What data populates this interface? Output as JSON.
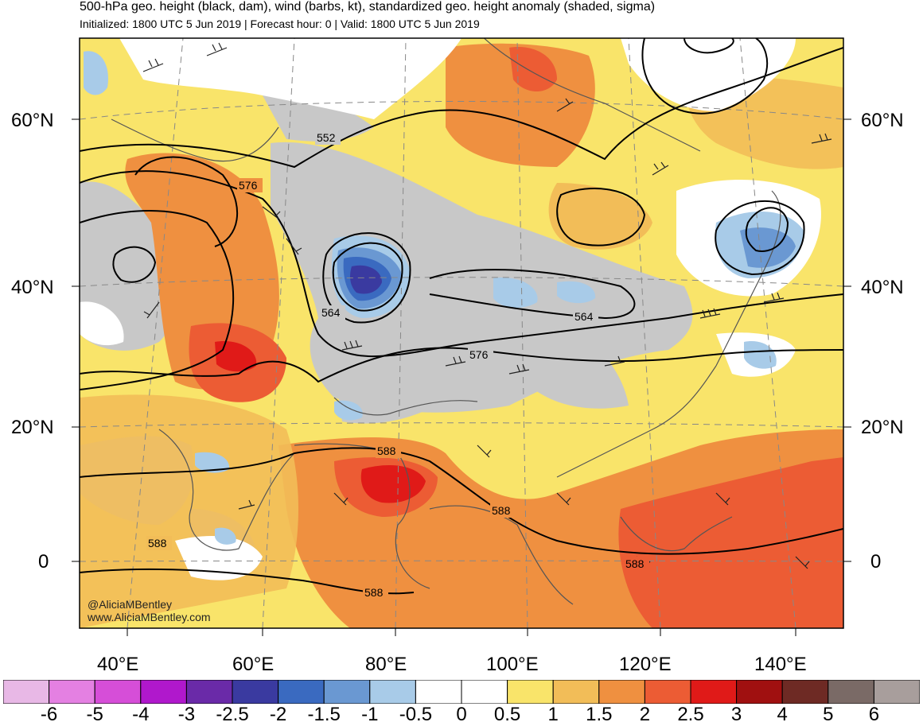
{
  "header": {
    "title": "500-hPa geo. height (black, dam), wind (barbs, kt), standardized geo. height anomaly (shaded, sigma)",
    "subtitle": "Initialized: 1800 UTC 5 Jun 2019 | Forecast hour: 0 | Valid: 1800 UTC 5 Jun 2019"
  },
  "map": {
    "lat_labels": [
      "60°N",
      "40°N",
      "20°N",
      "0"
    ],
    "lon_labels": [
      "40°E",
      "60°E",
      "80°E",
      "100°E",
      "120°E",
      "140°E"
    ],
    "contour_labels": [
      "552",
      "576",
      "564",
      "564",
      "576",
      "588",
      "588",
      "588",
      "588",
      "588"
    ],
    "credit": [
      "@AliciaMBentley",
      "www.AliciaMBentley.com"
    ]
  },
  "colorbar": {
    "labels": [
      "-6",
      "-5",
      "-4",
      "-3",
      "-2.5",
      "-2",
      "-1.5",
      "-1",
      "-0.5",
      "0",
      "0.5",
      "1",
      "1.5",
      "2",
      "2.5",
      "3",
      "4",
      "5",
      "6"
    ],
    "colors": [
      "#e8b8e6",
      "#e480e2",
      "#d64ed8",
      "#b018cc",
      "#6a2aa8",
      "#3a3aa0",
      "#3a6ac0",
      "#6a98d2",
      "#a8cbe8",
      "#ffffff",
      "#ffffff",
      "#f9e46a",
      "#f2bd58",
      "#ef9040",
      "#ec5c34",
      "#e01a18",
      "#a01010",
      "#6e2a24",
      "#7a6a66",
      "#a89e9c"
    ]
  },
  "anomaly_colors": {
    "grey": "#c8c8c8",
    "yellow": "#f9e46a",
    "light_orange": "#f2bd58",
    "orange": "#ef9040",
    "red_orange": "#ec5c34",
    "red": "#e01a18",
    "light_blue": "#a8cbe8",
    "mid_blue": "#6a98d2",
    "blue": "#3a6ac0",
    "dark_blue": "#3a3aa0"
  }
}
